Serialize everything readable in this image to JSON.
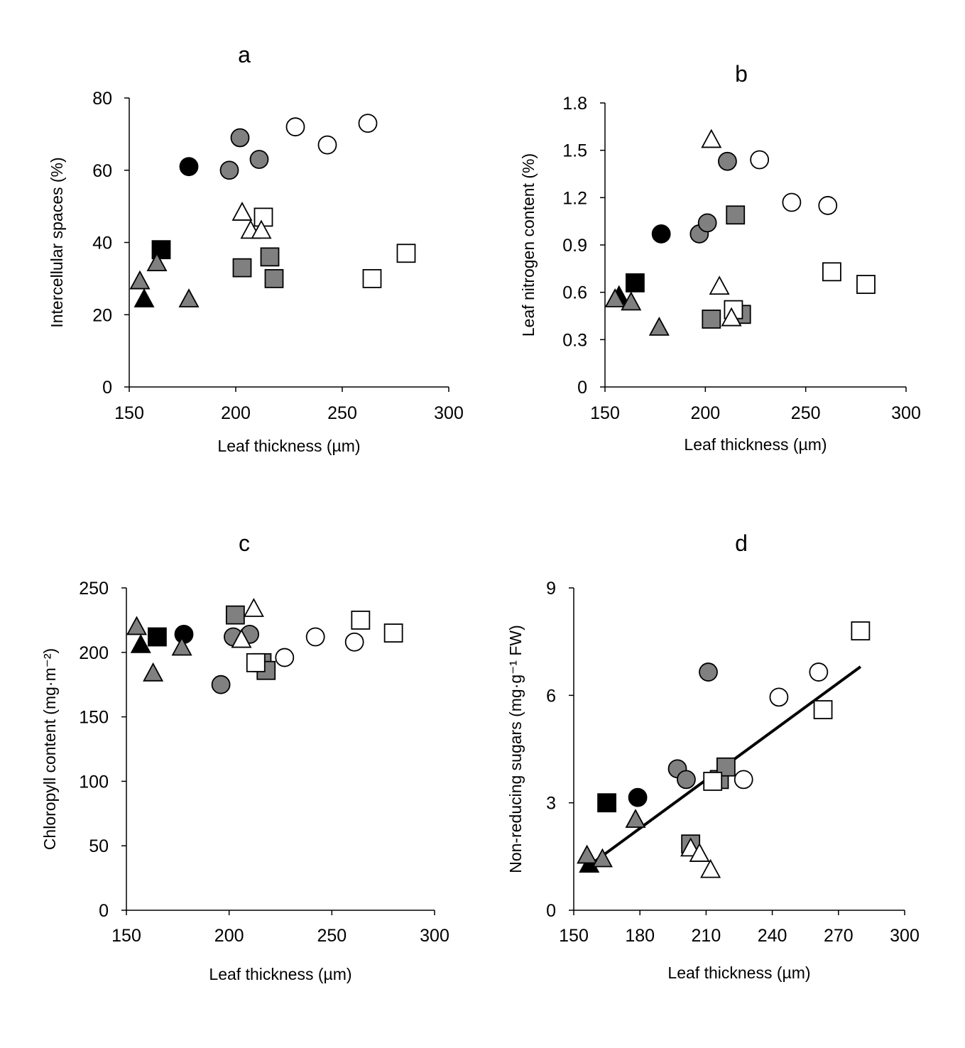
{
  "chart_data": [
    {
      "type": "scatter",
      "title": "a",
      "xlabel": "Leaf thickness (µm)",
      "ylabel": "Intercellular spaces (%)",
      "xlim": [
        150,
        300
      ],
      "ylim": [
        0,
        80
      ],
      "xticks": [
        150,
        200,
        250,
        300
      ],
      "yticks": [
        0,
        20,
        40,
        60,
        80
      ],
      "trendline": null,
      "points": [
        {
          "x": 178,
          "y": 61,
          "marker": "circle",
          "fill": "black"
        },
        {
          "x": 197,
          "y": 60,
          "marker": "circle",
          "fill": "gray"
        },
        {
          "x": 202,
          "y": 69,
          "marker": "circle",
          "fill": "gray"
        },
        {
          "x": 211,
          "y": 63,
          "marker": "circle",
          "fill": "gray"
        },
        {
          "x": 228,
          "y": 72,
          "marker": "circle",
          "fill": "white"
        },
        {
          "x": 243,
          "y": 67,
          "marker": "circle",
          "fill": "white"
        },
        {
          "x": 262,
          "y": 73,
          "marker": "circle",
          "fill": "white"
        },
        {
          "x": 165,
          "y": 38,
          "marker": "square",
          "fill": "black"
        },
        {
          "x": 203,
          "y": 33,
          "marker": "square",
          "fill": "gray"
        },
        {
          "x": 216,
          "y": 36,
          "marker": "square",
          "fill": "gray"
        },
        {
          "x": 218,
          "y": 30,
          "marker": "square",
          "fill": "gray"
        },
        {
          "x": 213,
          "y": 47,
          "marker": "square",
          "fill": "white"
        },
        {
          "x": 264,
          "y": 30,
          "marker": "square",
          "fill": "white"
        },
        {
          "x": 280,
          "y": 37,
          "marker": "square",
          "fill": "white"
        },
        {
          "x": 157,
          "y": 24,
          "marker": "triangle",
          "fill": "black"
        },
        {
          "x": 155,
          "y": 29,
          "marker": "triangle",
          "fill": "gray"
        },
        {
          "x": 163,
          "y": 34,
          "marker": "triangle",
          "fill": "gray"
        },
        {
          "x": 178,
          "y": 24,
          "marker": "triangle",
          "fill": "gray"
        },
        {
          "x": 203,
          "y": 48,
          "marker": "triangle",
          "fill": "white"
        },
        {
          "x": 207,
          "y": 43,
          "marker": "triangle",
          "fill": "white"
        },
        {
          "x": 212,
          "y": 43,
          "marker": "triangle",
          "fill": "white"
        }
      ]
    },
    {
      "type": "scatter",
      "title": "b",
      "xlabel": "Leaf thickness (µm)",
      "ylabel": "Leaf nitrogen content (%)",
      "xlim": [
        150,
        300
      ],
      "ylim": [
        0,
        1.8
      ],
      "xticks": [
        150,
        200,
        250,
        300
      ],
      "yticks": [
        0,
        0.3,
        0.6,
        0.9,
        1.2,
        1.5,
        1.8
      ],
      "ytick_labels": [
        "0",
        "0.3",
        "0.6",
        "0.9",
        "1.2",
        "1.5",
        "1.8"
      ],
      "trendline": null,
      "points": [
        {
          "x": 178,
          "y": 0.97,
          "marker": "circle",
          "fill": "black"
        },
        {
          "x": 197,
          "y": 0.97,
          "marker": "circle",
          "fill": "gray"
        },
        {
          "x": 201,
          "y": 1.04,
          "marker": "circle",
          "fill": "gray"
        },
        {
          "x": 211,
          "y": 1.43,
          "marker": "circle",
          "fill": "gray"
        },
        {
          "x": 227,
          "y": 1.44,
          "marker": "circle",
          "fill": "white"
        },
        {
          "x": 243,
          "y": 1.17,
          "marker": "circle",
          "fill": "white"
        },
        {
          "x": 261,
          "y": 1.15,
          "marker": "circle",
          "fill": "white"
        },
        {
          "x": 165,
          "y": 0.66,
          "marker": "square",
          "fill": "black"
        },
        {
          "x": 203,
          "y": 0.43,
          "marker": "square",
          "fill": "gray"
        },
        {
          "x": 215,
          "y": 1.09,
          "marker": "square",
          "fill": "gray"
        },
        {
          "x": 218,
          "y": 0.46,
          "marker": "square",
          "fill": "gray"
        },
        {
          "x": 214,
          "y": 0.49,
          "marker": "square",
          "fill": "white"
        },
        {
          "x": 263,
          "y": 0.73,
          "marker": "square",
          "fill": "white"
        },
        {
          "x": 280,
          "y": 0.65,
          "marker": "square",
          "fill": "white"
        },
        {
          "x": 157,
          "y": 0.57,
          "marker": "triangle",
          "fill": "black"
        },
        {
          "x": 155,
          "y": 0.55,
          "marker": "triangle",
          "fill": "gray"
        },
        {
          "x": 163,
          "y": 0.53,
          "marker": "triangle",
          "fill": "gray"
        },
        {
          "x": 177,
          "y": 0.37,
          "marker": "triangle",
          "fill": "gray"
        },
        {
          "x": 203,
          "y": 1.56,
          "marker": "triangle",
          "fill": "white"
        },
        {
          "x": 207,
          "y": 0.63,
          "marker": "triangle",
          "fill": "white"
        },
        {
          "x": 213,
          "y": 0.43,
          "marker": "triangle",
          "fill": "white"
        }
      ]
    },
    {
      "type": "scatter",
      "title": "c",
      "xlabel": "Leaf thickness (µm)",
      "ylabel": "Chloropyll content (mg·m⁻²)",
      "xlim": [
        150,
        300
      ],
      "ylim": [
        0,
        250
      ],
      "xticks": [
        150,
        200,
        250,
        300
      ],
      "yticks": [
        0,
        50,
        100,
        150,
        200,
        250
      ],
      "trendline": null,
      "points": [
        {
          "x": 178,
          "y": 214,
          "marker": "circle",
          "fill": "black"
        },
        {
          "x": 196,
          "y": 175,
          "marker": "circle",
          "fill": "gray"
        },
        {
          "x": 202,
          "y": 212,
          "marker": "circle",
          "fill": "gray"
        },
        {
          "x": 210,
          "y": 214,
          "marker": "circle",
          "fill": "gray"
        },
        {
          "x": 227,
          "y": 196,
          "marker": "circle",
          "fill": "white"
        },
        {
          "x": 242,
          "y": 212,
          "marker": "circle",
          "fill": "white"
        },
        {
          "x": 261,
          "y": 208,
          "marker": "circle",
          "fill": "white"
        },
        {
          "x": 165,
          "y": 212,
          "marker": "square",
          "fill": "black"
        },
        {
          "x": 203,
          "y": 229,
          "marker": "square",
          "fill": "gray"
        },
        {
          "x": 216,
          "y": 192,
          "marker": "square",
          "fill": "gray"
        },
        {
          "x": 218,
          "y": 186,
          "marker": "square",
          "fill": "gray"
        },
        {
          "x": 213,
          "y": 192,
          "marker": "square",
          "fill": "white"
        },
        {
          "x": 264,
          "y": 225,
          "marker": "square",
          "fill": "white"
        },
        {
          "x": 280,
          "y": 215,
          "marker": "square",
          "fill": "white"
        },
        {
          "x": 157,
          "y": 205,
          "marker": "triangle",
          "fill": "black"
        },
        {
          "x": 155,
          "y": 219,
          "marker": "triangle",
          "fill": "gray"
        },
        {
          "x": 163,
          "y": 183,
          "marker": "triangle",
          "fill": "gray"
        },
        {
          "x": 177,
          "y": 203,
          "marker": "triangle",
          "fill": "gray"
        },
        {
          "x": 206,
          "y": 209,
          "marker": "triangle",
          "fill": "white"
        },
        {
          "x": 212,
          "y": 233,
          "marker": "triangle",
          "fill": "white"
        }
      ]
    },
    {
      "type": "scatter",
      "title": "d",
      "xlabel": "Leaf thickness (µm)",
      "ylabel": "Non-reducing sugars (mg·g⁻¹ FW)",
      "xlim": [
        150,
        300
      ],
      "ylim": [
        0,
        9
      ],
      "xticks": [
        150,
        180,
        210,
        240,
        270,
        300
      ],
      "yticks": [
        0,
        3,
        6,
        9
      ],
      "trendline": {
        "x": [
          157,
          280
        ],
        "y": [
          1.25,
          6.8
        ]
      },
      "points": [
        {
          "x": 179,
          "y": 3.15,
          "marker": "circle",
          "fill": "black"
        },
        {
          "x": 197,
          "y": 3.95,
          "marker": "circle",
          "fill": "gray"
        },
        {
          "x": 201,
          "y": 3.65,
          "marker": "circle",
          "fill": "gray"
        },
        {
          "x": 211,
          "y": 6.65,
          "marker": "circle",
          "fill": "gray"
        },
        {
          "x": 227,
          "y": 3.65,
          "marker": "circle",
          "fill": "white"
        },
        {
          "x": 243,
          "y": 5.95,
          "marker": "circle",
          "fill": "white"
        },
        {
          "x": 261,
          "y": 6.65,
          "marker": "circle",
          "fill": "white"
        },
        {
          "x": 165,
          "y": 3.0,
          "marker": "square",
          "fill": "black"
        },
        {
          "x": 203,
          "y": 1.85,
          "marker": "square",
          "fill": "gray"
        },
        {
          "x": 216,
          "y": 3.65,
          "marker": "square",
          "fill": "gray"
        },
        {
          "x": 219,
          "y": 4.0,
          "marker": "square",
          "fill": "gray"
        },
        {
          "x": 213,
          "y": 3.6,
          "marker": "square",
          "fill": "white"
        },
        {
          "x": 263,
          "y": 5.6,
          "marker": "square",
          "fill": "white"
        },
        {
          "x": 280,
          "y": 7.8,
          "marker": "square",
          "fill": "white"
        },
        {
          "x": 157,
          "y": 1.25,
          "marker": "triangle",
          "fill": "black"
        },
        {
          "x": 156,
          "y": 1.5,
          "marker": "triangle",
          "fill": "gray"
        },
        {
          "x": 163,
          "y": 1.4,
          "marker": "triangle",
          "fill": "gray"
        },
        {
          "x": 178,
          "y": 2.5,
          "marker": "triangle",
          "fill": "gray"
        },
        {
          "x": 203,
          "y": 1.7,
          "marker": "triangle",
          "fill": "white"
        },
        {
          "x": 207,
          "y": 1.55,
          "marker": "triangle",
          "fill": "white"
        },
        {
          "x": 212,
          "y": 1.1,
          "marker": "triangle",
          "fill": "white"
        }
      ]
    }
  ],
  "colors": {
    "black": "#000000",
    "gray": "#808080",
    "white": "#ffffff",
    "stroke": "#000000"
  }
}
